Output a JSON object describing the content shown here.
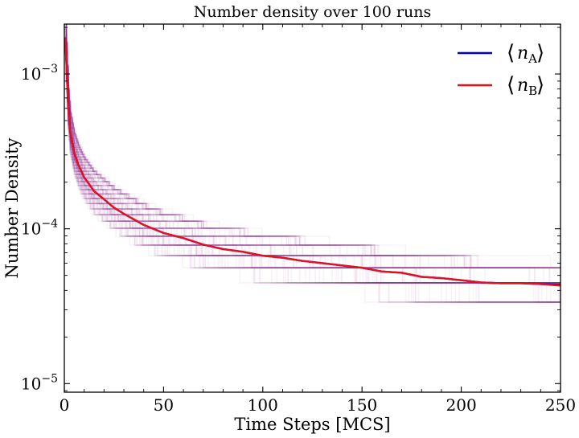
{
  "chart_data": {
    "type": "line",
    "title": "Number density over 100 runs",
    "xlabel": "Time Steps [MCS]",
    "ylabel": "Number Density",
    "xlim": [
      0,
      250
    ],
    "ylim": [
      8.8e-06,
      0.0021
    ],
    "yscale": "log",
    "grid": false,
    "legend_position": "top-right",
    "x_ticks": [
      {
        "value": 0,
        "label": "0"
      },
      {
        "value": 50,
        "label": "50"
      },
      {
        "value": 100,
        "label": "100"
      },
      {
        "value": 150,
        "label": "150"
      },
      {
        "value": 200,
        "label": "200"
      },
      {
        "value": 250,
        "label": "250"
      }
    ],
    "y_ticks": [
      {
        "value": 1e-05,
        "base": "10",
        "exp": "−5"
      },
      {
        "value": 0.0001,
        "base": "10",
        "exp": "−4"
      },
      {
        "value": 0.001,
        "base": "10",
        "exp": "−3"
      }
    ],
    "series": [
      {
        "name": "⟨nA⟩",
        "legend_main": "n",
        "legend_sub": "A",
        "color": "#0000dd",
        "x": [
          0,
          0.5,
          1,
          2,
          3,
          5,
          7,
          10,
          15,
          20,
          25,
          30,
          40,
          50,
          60,
          70,
          80,
          90,
          100,
          110,
          120,
          130,
          140,
          150,
          160,
          170,
          180,
          190,
          200,
          210,
          220,
          230,
          240,
          250
        ],
        "values": [
          0.0017,
          0.0017,
          0.0012,
          0.0006,
          0.00042,
          0.00031,
          0.00026,
          0.000215,
          0.000175,
          0.000155,
          0.000137,
          0.000125,
          0.000106,
          9.4e-05,
          8.7e-05,
          7.9e-05,
          7.4e-05,
          7.1e-05,
          6.7e-05,
          6.5e-05,
          6.2e-05,
          6e-05,
          5.8e-05,
          5.6e-05,
          5.3e-05,
          5.2e-05,
          4.9e-05,
          4.8e-05,
          4.65e-05,
          4.5e-05,
          4.45e-05,
          4.45e-05,
          4.4e-05,
          4.35e-05
        ]
      },
      {
        "name": "⟨nB⟩",
        "legend_main": "n",
        "legend_sub": "B",
        "color": "#e8101c",
        "x": [
          0,
          0.5,
          1,
          2,
          3,
          5,
          7,
          10,
          15,
          20,
          25,
          30,
          40,
          50,
          60,
          70,
          80,
          90,
          100,
          110,
          120,
          130,
          140,
          150,
          160,
          170,
          180,
          190,
          200,
          210,
          220,
          230,
          240,
          250
        ],
        "values": [
          0.0017,
          0.0017,
          0.0012,
          0.0006,
          0.00042,
          0.00031,
          0.00026,
          0.000215,
          0.000175,
          0.000155,
          0.000137,
          0.000125,
          0.000106,
          9.4e-05,
          8.7e-05,
          7.9e-05,
          7.4e-05,
          7.1e-05,
          6.7e-05,
          6.5e-05,
          6.2e-05,
          6e-05,
          5.8e-05,
          5.6e-05,
          5.3e-05,
          5.2e-05,
          4.9e-05,
          4.8e-05,
          4.65e-05,
          4.5e-05,
          4.45e-05,
          4.45e-05,
          4.4e-05,
          4.3e-05
        ]
      }
    ],
    "runs": {
      "count": 100,
      "color": "#8b1a8b",
      "opacity": 0.06
    }
  }
}
